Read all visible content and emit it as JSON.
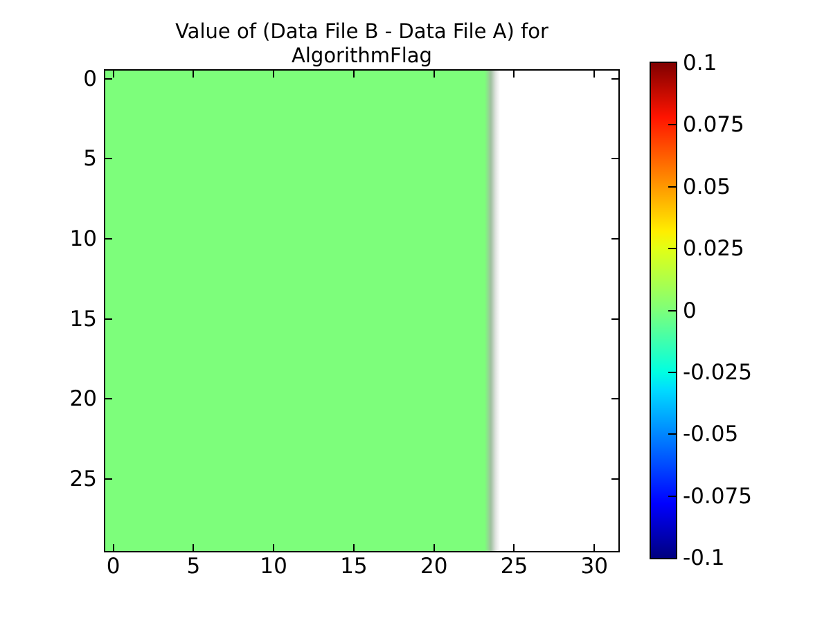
{
  "title": {
    "line1": "Value of (Data File B - Data File A) for",
    "line2": "AlgorithmFlag"
  },
  "colors": {
    "background": "#ffffff",
    "axes_border": "#000000",
    "text": "#000000",
    "zero_green": "#7dfe7b",
    "fade_mid_gray_green": "#a0c0a0",
    "fade_light_gray": "#e0e4e0",
    "nodata_white": "#ffffff"
  },
  "chart_data": {
    "type": "heatmap",
    "title": "Value of (Data File B - Data File A) for AlgorithmFlag",
    "xlabel": "",
    "ylabel": "",
    "xlim": [
      -0.5,
      31.5
    ],
    "ylim": [
      29.5,
      -0.5
    ],
    "x_ticks": [
      0,
      5,
      10,
      15,
      20,
      25,
      30
    ],
    "y_ticks": [
      0,
      5,
      10,
      15,
      20,
      25
    ],
    "grid": false,
    "colormap": "jet",
    "values_summary": "All plotted cells (columns 0-23, rows 0-29) have value 0 (zero difference, light green); columns 24-31.5 contain no data (white) with a blurred gray transition near x=23.5.",
    "regions": [
      {
        "x_range": [
          -0.5,
          23.5
        ],
        "y_range": [
          -0.5,
          29.5
        ],
        "value": 0,
        "color": "#7dfe7b"
      },
      {
        "x_range": [
          23.5,
          31.5
        ],
        "y_range": [
          -0.5,
          29.5
        ],
        "value": null,
        "color": "#ffffff"
      }
    ],
    "colorbar": {
      "position": "right",
      "vmin": -0.1,
      "vmax": 0.1,
      "tick_labels": [
        "0.1",
        "0.075",
        "0.05",
        "0.025",
        "0",
        "-0.025",
        "-0.05",
        "-0.075",
        "-0.1"
      ],
      "gradient_stops_top_to_bottom": [
        {
          "pos": 0,
          "color": "#800000"
        },
        {
          "pos": 11,
          "color": "#ff1400"
        },
        {
          "pos": 34,
          "color": "#ffee00"
        },
        {
          "pos": 37.5,
          "color": "#e2ff15"
        },
        {
          "pos": 50,
          "color": "#7dff7a"
        },
        {
          "pos": 62.5,
          "color": "#00ffe2"
        },
        {
          "pos": 66,
          "color": "#00dcff"
        },
        {
          "pos": 89,
          "color": "#0000ff"
        },
        {
          "pos": 100,
          "color": "#00007f"
        }
      ]
    }
  }
}
